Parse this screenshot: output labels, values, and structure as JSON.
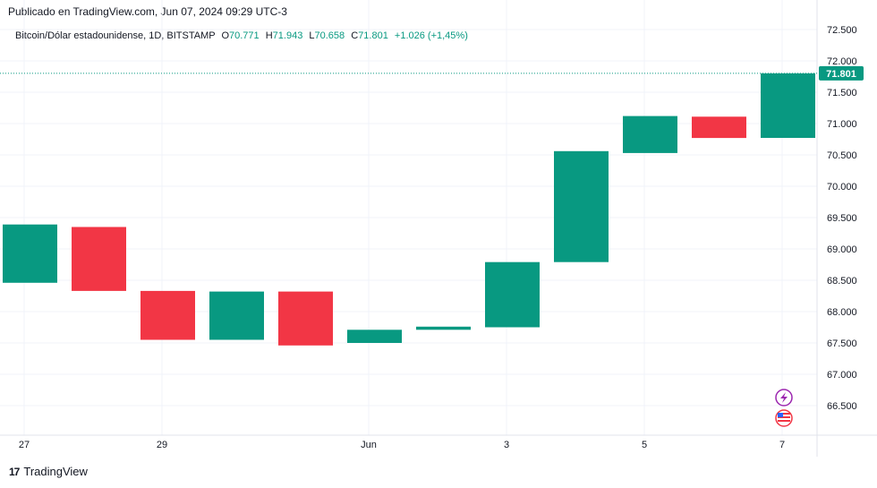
{
  "header": {
    "published": "Publicado en TradingView.com, Jun 07, 2024 09:29 UTC-3"
  },
  "legend": {
    "symbol": "Bitcoin/Dólar estadounidense, 1D, BITSTAMP",
    "o_label": "O",
    "o_value": "70.771",
    "h_label": "H",
    "h_value": "71.943",
    "l_label": "L",
    "l_value": "70.658",
    "c_label": "C",
    "c_value": "71.801",
    "change": "+1.026 (+1,45%)"
  },
  "last_price_label": "71.801",
  "brand": {
    "logo": "17",
    "name": "TradingView"
  },
  "colors": {
    "up": "#089981",
    "down": "#f23645",
    "grid": "#f0f3fa",
    "text": "#131722"
  },
  "icons": [
    "lightning-icon",
    "us-flag-icon"
  ],
  "chart_data": {
    "type": "candlestick",
    "ylim": [
      65.9,
      72.6
    ],
    "y_ticks": [
      "66.500",
      "67.000",
      "67.500",
      "68.000",
      "68.500",
      "69.000",
      "69.500",
      "70.000",
      "70.500",
      "71.000",
      "71.500",
      "72.000",
      "72.500"
    ],
    "x_ticks": [
      {
        "label": "27",
        "index": 0
      },
      {
        "label": "29",
        "index": 2
      },
      {
        "label": "Jun",
        "index": 5
      },
      {
        "label": "3",
        "index": 7
      },
      {
        "label": "5",
        "index": 9
      },
      {
        "label": "7",
        "index": 11
      }
    ],
    "last_price": 71.801,
    "candles": [
      {
        "open": 68.46,
        "close": 69.39
      },
      {
        "open": 69.35,
        "close": 68.33
      },
      {
        "open": 68.33,
        "close": 67.55
      },
      {
        "open": 67.55,
        "close": 68.32
      },
      {
        "open": 68.32,
        "close": 67.46
      },
      {
        "open": 67.5,
        "close": 67.71
      },
      {
        "open": 67.71,
        "close": 67.76
      },
      {
        "open": 67.75,
        "close": 68.79
      },
      {
        "open": 68.79,
        "close": 70.56
      },
      {
        "open": 70.53,
        "close": 71.12
      },
      {
        "open": 71.11,
        "close": 70.77
      },
      {
        "open": 70.771,
        "close": 71.801
      }
    ]
  }
}
